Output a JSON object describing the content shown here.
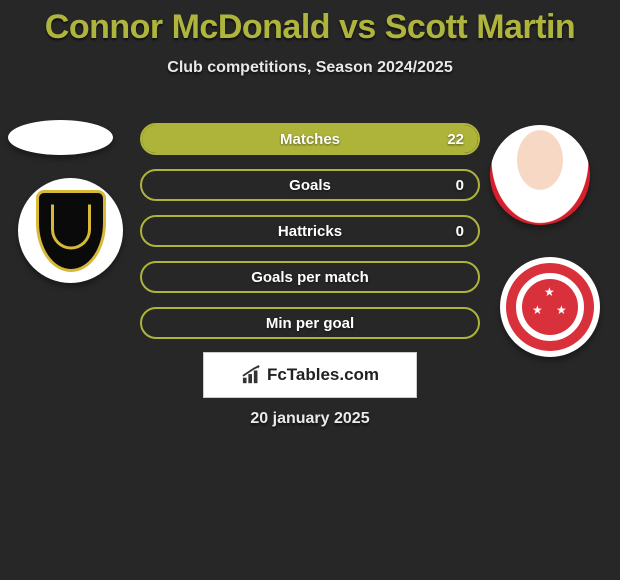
{
  "title": "Connor McDonald vs Scott Martin",
  "subtitle": "Club competitions, Season 2024/2025",
  "date": "20 january 2025",
  "logo_text": "FcTables.com",
  "colors": {
    "accent": "#aeb43a",
    "title": "#afb53c",
    "background": "#272727",
    "text": "#e8e8e8",
    "club_left_bg": "#0a0a0a",
    "club_left_trim": "#d8b838",
    "club_right": "#d8313c"
  },
  "stats": [
    {
      "label": "Matches",
      "left_pct": 0,
      "right_pct": 100,
      "right_value": "22"
    },
    {
      "label": "Goals",
      "left_pct": 0,
      "right_pct": 0,
      "right_value": "0"
    },
    {
      "label": "Hattricks",
      "left_pct": 0,
      "right_pct": 0,
      "right_value": "0"
    },
    {
      "label": "Goals per match",
      "left_pct": 0,
      "right_pct": 0,
      "right_value": ""
    },
    {
      "label": "Min per goal",
      "left_pct": 0,
      "right_pct": 0,
      "right_value": ""
    }
  ]
}
